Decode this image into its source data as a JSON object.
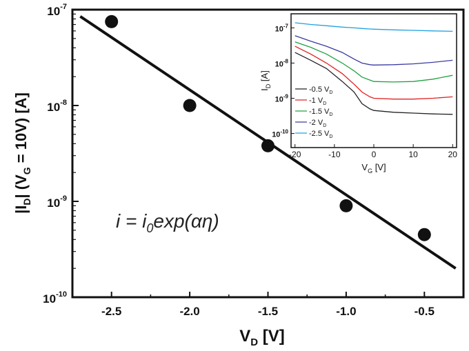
{
  "chart_data": [
    {
      "type": "scatter",
      "title": "",
      "xlabel": {
        "main": "V",
        "sub": "D",
        "tail": " [V]"
      },
      "ylabel": {
        "p1": "|I",
        "sub1": "D",
        "p2": "| (V",
        "sub2": "G",
        "p3": " = 10V) [A]"
      },
      "xlim": [
        -2.75,
        -0.25
      ],
      "ylim_log10": [
        -10,
        -7
      ],
      "y_scale": "log",
      "x_ticks": [
        -2.5,
        -2.0,
        -1.5,
        -1.0,
        -0.5
      ],
      "x_tick_labels": [
        "-2.5",
        "-2.0",
        "-1.5",
        "-1.0",
        "-0.5"
      ],
      "y_tick_labels": [
        {
          "exp": -7,
          "base": "10",
          "sup": "-7"
        },
        {
          "exp": -8,
          "base": "10",
          "sup": "-8"
        },
        {
          "exp": -9,
          "base": "10",
          "sup": "-9"
        },
        {
          "exp": -10,
          "base": "10",
          "sup": "-10"
        }
      ],
      "points": [
        {
          "x": -2.5,
          "y": 7.5e-08
        },
        {
          "x": -2.0,
          "y": 1e-08
        },
        {
          "x": -1.5,
          "y": 3.8e-09
        },
        {
          "x": -1.0,
          "y": 9e-10
        },
        {
          "x": -0.5,
          "y": 4.5e-10
        }
      ],
      "fit_line": {
        "x": [
          -2.7,
          -0.3
        ],
        "y": [
          8.5e-08,
          2e-10
        ]
      },
      "annotation": {
        "i1": "i = i",
        "sub": "0",
        "i2": "exp(αη)"
      },
      "grid": false,
      "colors": {
        "markers": "#111111",
        "line": "#111111"
      }
    },
    {
      "type": "line",
      "title": "",
      "xlabel": {
        "main": "V",
        "sub": "G",
        "tail": " [V]"
      },
      "ylabel": {
        "main": "I",
        "sub": "D",
        "tail": " [A]"
      },
      "xlim": [
        -21,
        21
      ],
      "ylim_log10": [
        -10.4,
        -6.6
      ],
      "y_scale": "log",
      "x_ticks": [
        -20,
        -10,
        0,
        10,
        20
      ],
      "x_tick_labels": [
        "-20",
        "-10",
        "0",
        "10",
        "20"
      ],
      "y_tick_labels": [
        {
          "exp": -7,
          "base": "10",
          "sup": "-7"
        },
        {
          "exp": -8,
          "base": "10",
          "sup": "-8"
        },
        {
          "exp": -9,
          "base": "10",
          "sup": "-9"
        },
        {
          "exp": -10,
          "base": "10",
          "sup": "-10"
        }
      ],
      "legend_placement": "bottom-left",
      "x": [
        -20,
        -16,
        -12,
        -8,
        -5,
        -3,
        -1,
        0,
        5,
        10,
        15,
        20
      ],
      "series": [
        {
          "name": "-0.5 V",
          "sub": "D",
          "color": "#222222",
          "y": [
            2e-08,
            1.2e-08,
            7e-09,
            3e-09,
            1.5e-09,
            7e-10,
            5e-10,
            4.5e-10,
            4e-10,
            3.8e-10,
            3.6e-10,
            3.5e-10
          ]
        },
        {
          "name": "-1 V",
          "sub": "D",
          "color": "#e02020",
          "y": [
            3e-08,
            1.8e-08,
            1e-08,
            5e-09,
            2.5e-09,
            1.5e-09,
            1.1e-09,
            1e-09,
            9.5e-10,
            9.5e-10,
            1e-09,
            1.1e-09
          ]
        },
        {
          "name": "-1.5 V",
          "sub": "D",
          "color": "#20a040",
          "y": [
            4e-08,
            2.8e-08,
            1.8e-08,
            1e-08,
            6e-09,
            4e-09,
            3.3e-09,
            3e-09,
            2.9e-09,
            3e-09,
            3.5e-09,
            4.5e-09
          ]
        },
        {
          "name": "-2 V",
          "sub": "D",
          "color": "#3a3aa0",
          "y": [
            6e-08,
            4.2e-08,
            3e-08,
            2e-08,
            1.3e-08,
            1e-08,
            9e-09,
            8.8e-09,
            9e-09,
            9.5e-09,
            1.05e-08,
            1.2e-08
          ]
        },
        {
          "name": "-2.5 V",
          "sub": "D",
          "color": "#20a0e0",
          "y": [
            1.4e-07,
            1.25e-07,
            1.15e-07,
            1.05e-07,
            1e-07,
            9.6e-08,
            9.3e-08,
            9.2e-08,
            8.8e-08,
            8.5e-08,
            8.2e-08,
            8e-08
          ]
        }
      ]
    }
  ]
}
